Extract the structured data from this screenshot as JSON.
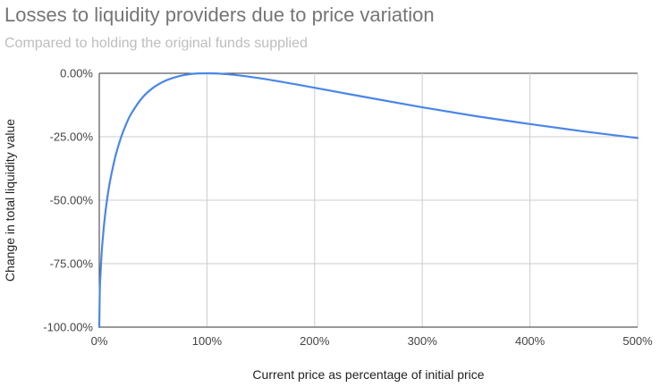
{
  "chart_data": {
    "type": "line",
    "title": "Losses to liquidity providers due to price variation",
    "subtitle": "Compared to holding the original funds supplied",
    "xlabel": "Current price as percentage of initial price",
    "ylabel": "Change in total liquidity value",
    "xlim": [
      0,
      500
    ],
    "ylim": [
      -100,
      0
    ],
    "x_ticks": [
      0,
      100,
      200,
      300,
      400,
      500
    ],
    "x_tick_labels": [
      "0%",
      "100%",
      "200%",
      "300%",
      "400%",
      "500%"
    ],
    "y_ticks": [
      0,
      -25,
      -50,
      -75,
      -100
    ],
    "y_tick_labels": [
      "0.00%",
      "-25.00%",
      "-50.00%",
      "-75.00%",
      "-100.00%"
    ],
    "grid": true,
    "series": [
      {
        "name": "Change in total liquidity value",
        "color": "#4a86e8",
        "x": [
          0,
          0.5,
          1,
          2,
          3,
          5,
          7,
          10,
          15,
          20,
          25,
          30,
          40,
          50,
          60,
          70,
          80,
          90,
          100,
          110,
          125,
          150,
          175,
          200,
          250,
          300,
          350,
          400,
          450,
          500
        ],
        "y": [
          -100,
          -85.9,
          -80.2,
          -72.3,
          -66.4,
          -57.4,
          -50.5,
          -42.5,
          -32.7,
          -25.5,
          -20.0,
          -15.7,
          -9.6,
          -5.7,
          -3.2,
          -1.6,
          -0.6,
          -0.1,
          0,
          -0.1,
          -0.6,
          -2.0,
          -3.8,
          -5.7,
          -9.6,
          -13.4,
          -16.9,
          -20.0,
          -22.9,
          -25.5
        ]
      }
    ]
  }
}
